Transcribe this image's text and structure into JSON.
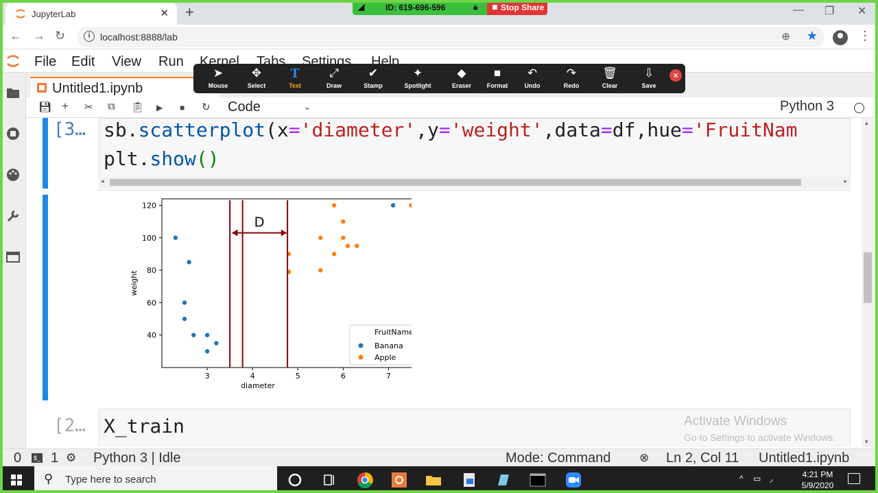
{
  "browser": {
    "tab_title": "JupyterLab",
    "tab_close": "✕",
    "new_tab": "+",
    "url": "localhost:8888/lab"
  },
  "share": {
    "id_text": "ID: 619-696-596",
    "stop_label": "Stop Share"
  },
  "jupyter": {
    "menu": [
      "File",
      "Edit",
      "View",
      "Run",
      "Kernel",
      "Tabs",
      "Settings",
      "Help"
    ],
    "doc_tab": "Untitled1.ipynb",
    "doc_tab_close": "×",
    "cell_type": "Code",
    "kernel": "Python 3"
  },
  "annotation_toolbar": {
    "tools": [
      {
        "label": "Mouse",
        "icon": "cursor-icon",
        "glyph": "➤"
      },
      {
        "label": "Select",
        "icon": "move-icon",
        "glyph": "✥"
      },
      {
        "label": "Text",
        "icon": "text-icon",
        "glyph": "T"
      },
      {
        "label": "Draw",
        "icon": "pen-icon",
        "glyph": "⤢"
      },
      {
        "label": "Stamp",
        "icon": "check-icon",
        "glyph": "✔"
      },
      {
        "label": "Spotlight",
        "icon": "spotlight-icon",
        "glyph": "✦"
      },
      {
        "label": "Eraser",
        "icon": "eraser-icon",
        "glyph": "◆"
      },
      {
        "label": "Format",
        "icon": "format-icon",
        "glyph": "■"
      },
      {
        "label": "Undo",
        "icon": "undo-icon",
        "glyph": "↶"
      },
      {
        "label": "Redo",
        "icon": "redo-icon",
        "glyph": "↷"
      },
      {
        "label": "Clear",
        "icon": "trash-icon",
        "glyph": "🗑"
      },
      {
        "label": "Save",
        "icon": "save-icon",
        "glyph": "⇩"
      }
    ],
    "active_tool": "Text",
    "close_glyph": "×"
  },
  "cells": {
    "cell1_prompt": "[3…",
    "cell1_line1": [
      {
        "t": "sb",
        "c": ""
      },
      {
        "t": ".",
        "c": ""
      },
      {
        "t": "scatterplot",
        "c": "k"
      },
      {
        "t": "(",
        "c": ""
      },
      {
        "t": "x",
        "c": ""
      },
      {
        "t": "=",
        "c": "o"
      },
      {
        "t": "'diameter'",
        "c": "s"
      },
      {
        "t": ",",
        "c": ""
      },
      {
        "t": "y",
        "c": ""
      },
      {
        "t": "=",
        "c": "o"
      },
      {
        "t": "'weight'",
        "c": "s"
      },
      {
        "t": ",",
        "c": ""
      },
      {
        "t": "data",
        "c": ""
      },
      {
        "t": "=",
        "c": "o"
      },
      {
        "t": "df",
        "c": ""
      },
      {
        "t": ",",
        "c": ""
      },
      {
        "t": "hue",
        "c": ""
      },
      {
        "t": "=",
        "c": "o"
      },
      {
        "t": "'FruitNam",
        "c": "s"
      }
    ],
    "cell1_line2": [
      {
        "t": "plt",
        "c": ""
      },
      {
        "t": ".",
        "c": ""
      },
      {
        "t": "show",
        "c": "k"
      },
      {
        "t": "()",
        "c": "p"
      }
    ],
    "cell2_prompt": "[2…",
    "cell2_code": "X_train"
  },
  "chart_data": {
    "type": "scatter",
    "xlabel": "diameter",
    "ylabel": "weight",
    "xlim": [
      2.0,
      7.75
    ],
    "ylim": [
      20,
      124
    ],
    "x_ticks": [
      3,
      4,
      5,
      6,
      7
    ],
    "y_ticks": [
      40,
      60,
      80,
      100,
      120
    ],
    "legend_title": "FruitName",
    "legend_position": "lower-right",
    "series": [
      {
        "name": "Banana",
        "color": "#1f77b4",
        "x": [
          2.3,
          2.6,
          2.5,
          2.5,
          2.7,
          3.0,
          3.0,
          3.2,
          7.1
        ],
        "y": [
          100,
          85,
          60,
          50,
          40,
          40,
          30,
          35,
          120
        ]
      },
      {
        "name": "Apple",
        "color": "#ff7f0e",
        "x": [
          5.8,
          6.0,
          5.5,
          6.0,
          6.1,
          6.3,
          5.8,
          5.5,
          4.8,
          4.8,
          7.5
        ],
        "y": [
          120,
          110,
          100,
          100,
          95,
          95,
          90,
          80,
          90,
          79,
          120
        ]
      }
    ],
    "annotation": {
      "label": "D",
      "color": "#8b0000",
      "vertical_lines_x": [
        3.5,
        3.78,
        4.77
      ],
      "arrow_from_x": 3.55,
      "arrow_to_x": 4.75,
      "arrow_y": 103
    }
  },
  "statusbar": {
    "left_count_a": "0",
    "left_count_b": "1",
    "kernel_idle": "Python 3 | Idle",
    "mode": "Mode: Command",
    "cursor": "Ln 2, Col 11",
    "file": "Untitled1.ipynb"
  },
  "windows_watermark": {
    "line1": "Activate Windows",
    "line2": "Go to Settings to activate Windows."
  },
  "taskbar": {
    "search_placeholder": "Type here to search",
    "time": "4:21 PM",
    "date": "5/9/2020"
  }
}
